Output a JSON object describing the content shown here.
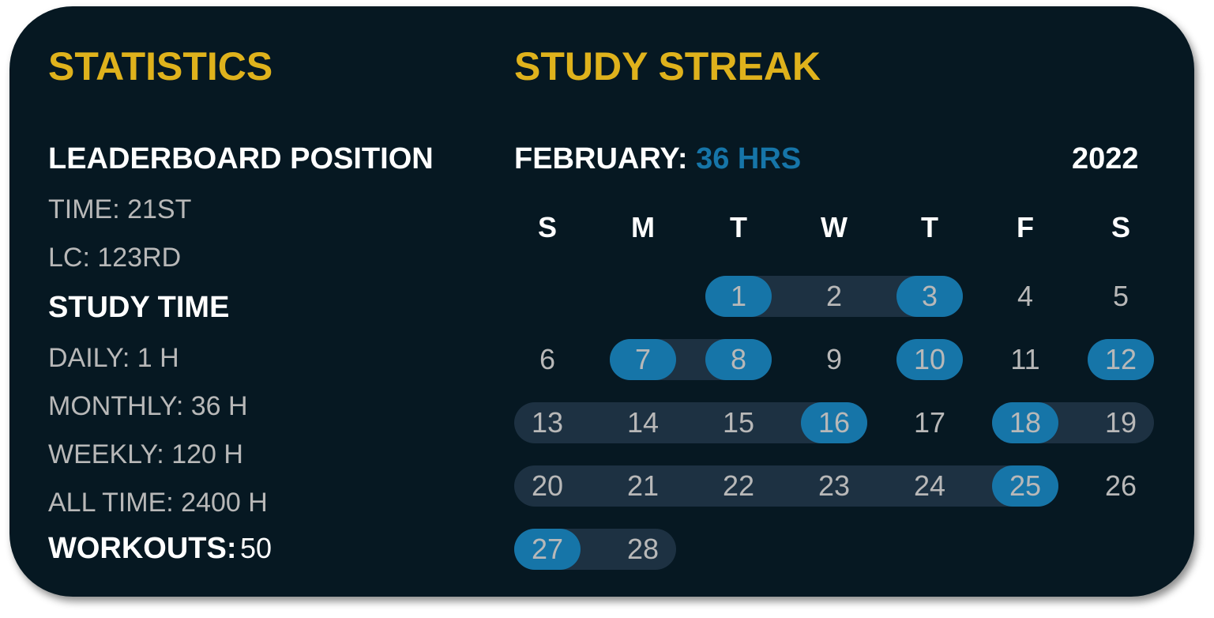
{
  "statistics": {
    "title": "STATISTICS",
    "leaderboard_heading": "LEADERBOARD POSITION",
    "leaderboard_items": [
      "TIME: 21ST",
      "LC: 123RD"
    ],
    "study_time_heading": "STUDY TIME",
    "study_time_items": [
      "DAILY: 1 H",
      "MONTHLY: 36 H",
      "WEEKLY: 120 H",
      "ALL TIME: 2400 H"
    ],
    "workouts_label": "WORKOUTS:",
    "workouts_value": "50"
  },
  "streak": {
    "title": "STUDY STREAK",
    "month_label": "FEBRUARY:",
    "month_hours": "36 HRS",
    "year": "2022",
    "weekdays": [
      "S",
      "M",
      "T",
      "W",
      "T",
      "F",
      "S"
    ],
    "first_weekday_index": 2,
    "days_in_month": 28,
    "studied_days": [
      1,
      3,
      7,
      8,
      10,
      12,
      16,
      18,
      25,
      27
    ],
    "streak_ranges": [
      [
        1,
        3
      ],
      [
        7,
        8
      ],
      [
        13,
        16
      ],
      [
        18,
        19
      ],
      [
        20,
        25
      ],
      [
        27,
        28
      ]
    ],
    "colors": {
      "accent": "#dfb21c",
      "highlight": "#1675a8",
      "streak": "#1d3142",
      "background": "#061822"
    }
  }
}
